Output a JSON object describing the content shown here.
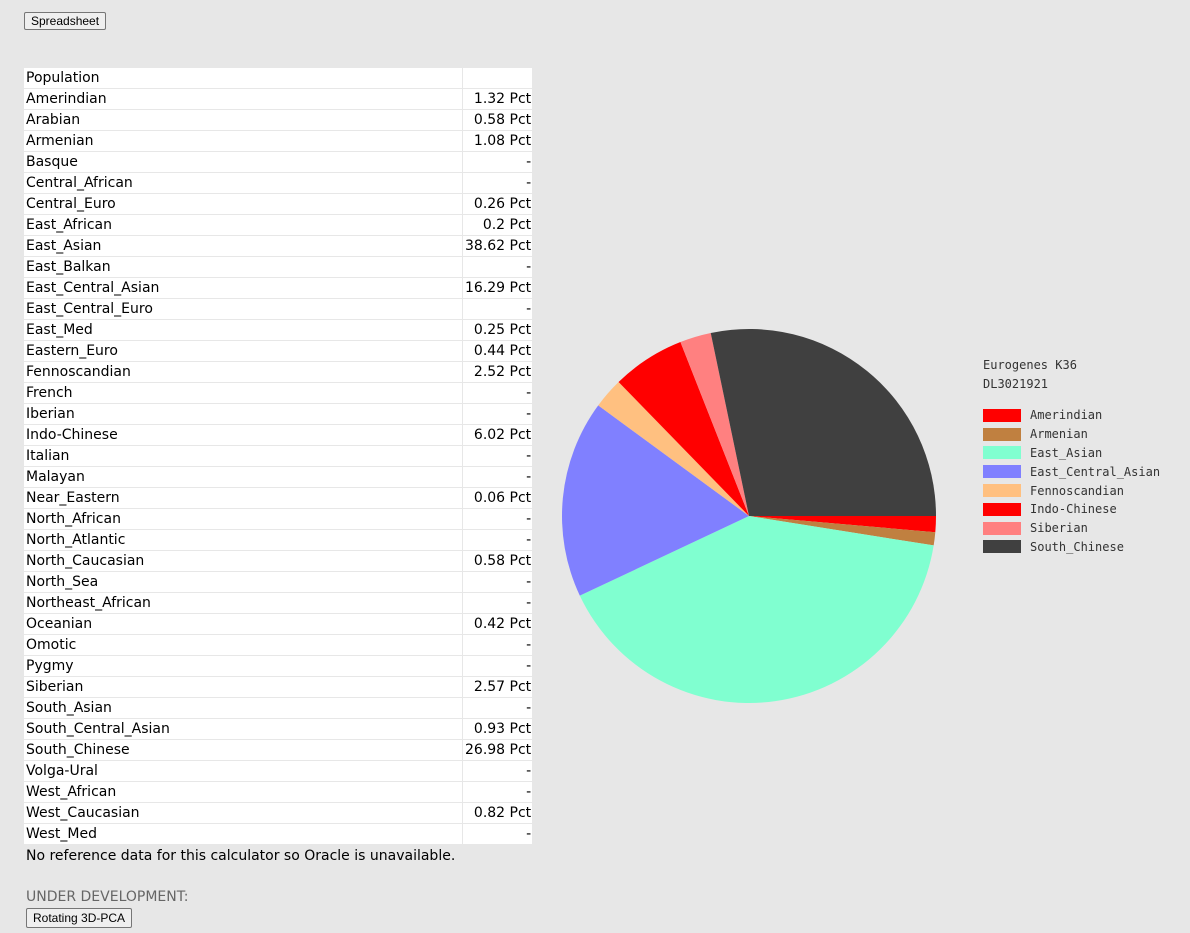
{
  "buttons": {
    "spreadsheet": "Spreadsheet",
    "pca": "Rotating 3D-PCA"
  },
  "table": {
    "header": "Population",
    "rows": [
      {
        "name": "Amerindian",
        "value": "1.32 Pct"
      },
      {
        "name": "Arabian",
        "value": "0.58 Pct"
      },
      {
        "name": "Armenian",
        "value": "1.08 Pct"
      },
      {
        "name": "Basque",
        "value": "-"
      },
      {
        "name": "Central_African",
        "value": "-"
      },
      {
        "name": "Central_Euro",
        "value": "0.26 Pct"
      },
      {
        "name": "East_African",
        "value": "0.2 Pct"
      },
      {
        "name": "East_Asian",
        "value": "38.62 Pct"
      },
      {
        "name": "East_Balkan",
        "value": "-"
      },
      {
        "name": "East_Central_Asian",
        "value": "16.29 Pct"
      },
      {
        "name": "East_Central_Euro",
        "value": "-"
      },
      {
        "name": "East_Med",
        "value": "0.25 Pct"
      },
      {
        "name": "Eastern_Euro",
        "value": "0.44 Pct"
      },
      {
        "name": "Fennoscandian",
        "value": "2.52 Pct"
      },
      {
        "name": "French",
        "value": "-"
      },
      {
        "name": "Iberian",
        "value": "-"
      },
      {
        "name": "Indo-Chinese",
        "value": "6.02 Pct"
      },
      {
        "name": "Italian",
        "value": "-"
      },
      {
        "name": "Malayan",
        "value": "-"
      },
      {
        "name": "Near_Eastern",
        "value": "0.06 Pct"
      },
      {
        "name": "North_African",
        "value": "-"
      },
      {
        "name": "North_Atlantic",
        "value": "-"
      },
      {
        "name": "North_Caucasian",
        "value": "0.58 Pct"
      },
      {
        "name": "North_Sea",
        "value": "-"
      },
      {
        "name": "Northeast_African",
        "value": "-"
      },
      {
        "name": "Oceanian",
        "value": "0.42 Pct"
      },
      {
        "name": "Omotic",
        "value": "-"
      },
      {
        "name": "Pygmy",
        "value": "-"
      },
      {
        "name": "Siberian",
        "value": "2.57 Pct"
      },
      {
        "name": "South_Asian",
        "value": "-"
      },
      {
        "name": "South_Central_Asian",
        "value": "0.93 Pct"
      },
      {
        "name": "South_Chinese",
        "value": "26.98 Pct"
      },
      {
        "name": "Volga-Ural",
        "value": "-"
      },
      {
        "name": "West_African",
        "value": "-"
      },
      {
        "name": "West_Caucasian",
        "value": "0.82 Pct"
      },
      {
        "name": "West_Med",
        "value": "-"
      }
    ]
  },
  "note": "No reference data for this calculator so Oracle is unavailable.",
  "under_development": "UNDER DEVELOPMENT:",
  "chart_data": {
    "type": "pie",
    "title": "Eurogenes K36",
    "subtitle": "DL3021921",
    "legend_position": "right",
    "slices": [
      {
        "label": "Amerindian",
        "value": 1.32,
        "color": "#ff0000"
      },
      {
        "label": "Armenian",
        "value": 1.08,
        "color": "#c08040"
      },
      {
        "label": "East_Asian",
        "value": 38.62,
        "color": "#80ffd0"
      },
      {
        "label": "East_Central_Asian",
        "value": 16.29,
        "color": "#8080ff"
      },
      {
        "label": "Fennoscandian",
        "value": 2.52,
        "color": "#ffc080"
      },
      {
        "label": "Indo-Chinese",
        "value": 6.02,
        "color": "#ff0000"
      },
      {
        "label": "Siberian",
        "value": 2.57,
        "color": "#ff8080"
      },
      {
        "label": "South_Chinese",
        "value": 26.98,
        "color": "#404040"
      }
    ]
  }
}
